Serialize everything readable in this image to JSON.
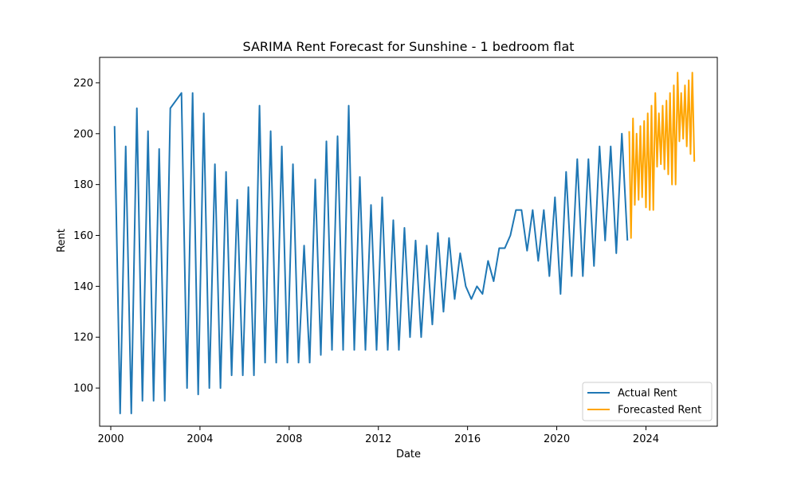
{
  "chart_data": {
    "type": "line",
    "title": "SARIMA Rent Forecast for Sunshine - 1 bedroom flat",
    "xlabel": "Date",
    "ylabel": "Rent",
    "xlim": [
      1999.5,
      2027.2
    ],
    "ylim": [
      85,
      230
    ],
    "x_ticks": [
      2000,
      2004,
      2008,
      2012,
      2016,
      2020,
      2024
    ],
    "y_ticks": [
      100,
      120,
      140,
      160,
      180,
      200,
      220
    ],
    "grid": false,
    "legend_position": "bottom-right",
    "series": [
      {
        "name": "Actual Rent",
        "color": "#1f77b4",
        "points": [
          [
            2000.17,
            203
          ],
          [
            2000.42,
            90
          ],
          [
            2000.67,
            195
          ],
          [
            2000.92,
            90
          ],
          [
            2001.17,
            210
          ],
          [
            2001.42,
            95
          ],
          [
            2001.67,
            201
          ],
          [
            2001.92,
            95
          ],
          [
            2002.17,
            194
          ],
          [
            2002.42,
            95
          ],
          [
            2002.67,
            210
          ],
          [
            2003.17,
            216
          ],
          [
            2003.42,
            100
          ],
          [
            2003.67,
            216
          ],
          [
            2003.92,
            97.5
          ],
          [
            2004.17,
            208
          ],
          [
            2004.42,
            100
          ],
          [
            2004.67,
            188
          ],
          [
            2004.92,
            100
          ],
          [
            2005.17,
            185
          ],
          [
            2005.42,
            105
          ],
          [
            2005.67,
            174
          ],
          [
            2005.92,
            105
          ],
          [
            2006.17,
            179
          ],
          [
            2006.42,
            105
          ],
          [
            2006.67,
            211
          ],
          [
            2006.92,
            110
          ],
          [
            2007.17,
            201
          ],
          [
            2007.42,
            110
          ],
          [
            2007.67,
            195
          ],
          [
            2007.92,
            110
          ],
          [
            2008.17,
            188
          ],
          [
            2008.42,
            110
          ],
          [
            2008.67,
            156
          ],
          [
            2008.92,
            110
          ],
          [
            2009.17,
            182
          ],
          [
            2009.42,
            113
          ],
          [
            2009.67,
            197
          ],
          [
            2009.92,
            115
          ],
          [
            2010.17,
            199
          ],
          [
            2010.42,
            115
          ],
          [
            2010.67,
            211
          ],
          [
            2010.92,
            115
          ],
          [
            2011.17,
            183
          ],
          [
            2011.42,
            115
          ],
          [
            2011.67,
            172
          ],
          [
            2011.92,
            115
          ],
          [
            2012.17,
            175
          ],
          [
            2012.42,
            115
          ],
          [
            2012.67,
            166
          ],
          [
            2012.92,
            115
          ],
          [
            2013.17,
            163
          ],
          [
            2013.42,
            120
          ],
          [
            2013.67,
            158
          ],
          [
            2013.92,
            120
          ],
          [
            2014.17,
            156
          ],
          [
            2014.42,
            125
          ],
          [
            2014.67,
            161
          ],
          [
            2014.92,
            130
          ],
          [
            2015.17,
            159
          ],
          [
            2015.42,
            135
          ],
          [
            2015.67,
            153
          ],
          [
            2015.92,
            140
          ],
          [
            2016.17,
            135
          ],
          [
            2016.42,
            140
          ],
          [
            2016.67,
            137
          ],
          [
            2016.92,
            150
          ],
          [
            2017.17,
            142
          ],
          [
            2017.42,
            155
          ],
          [
            2017.67,
            155
          ],
          [
            2017.92,
            160
          ],
          [
            2018.17,
            170
          ],
          [
            2018.42,
            170
          ],
          [
            2018.67,
            154
          ],
          [
            2018.92,
            170
          ],
          [
            2019.17,
            150
          ],
          [
            2019.42,
            170
          ],
          [
            2019.67,
            144
          ],
          [
            2019.92,
            175
          ],
          [
            2020.17,
            137
          ],
          [
            2020.42,
            185
          ],
          [
            2020.67,
            144
          ],
          [
            2020.92,
            190
          ],
          [
            2021.17,
            144
          ],
          [
            2021.42,
            190
          ],
          [
            2021.67,
            148
          ],
          [
            2021.92,
            195
          ],
          [
            2022.17,
            158
          ],
          [
            2022.42,
            195
          ],
          [
            2022.67,
            153
          ],
          [
            2022.92,
            200
          ],
          [
            2023.17,
            158
          ]
        ]
      },
      {
        "name": "Forecasted Rent",
        "color": "#ffa500",
        "points": [
          [
            2023.25,
            201
          ],
          [
            2023.33,
            159
          ],
          [
            2023.42,
            206
          ],
          [
            2023.5,
            172
          ],
          [
            2023.58,
            200
          ],
          [
            2023.67,
            174
          ],
          [
            2023.75,
            203
          ],
          [
            2023.83,
            175
          ],
          [
            2023.92,
            205
          ],
          [
            2024.0,
            171
          ],
          [
            2024.08,
            208
          ],
          [
            2024.17,
            170
          ],
          [
            2024.25,
            211
          ],
          [
            2024.33,
            170
          ],
          [
            2024.42,
            216
          ],
          [
            2024.5,
            187
          ],
          [
            2024.58,
            208
          ],
          [
            2024.67,
            188
          ],
          [
            2024.75,
            211
          ],
          [
            2024.83,
            186
          ],
          [
            2024.92,
            213
          ],
          [
            2025.0,
            184
          ],
          [
            2025.08,
            216
          ],
          [
            2025.17,
            180
          ],
          [
            2025.25,
            219
          ],
          [
            2025.33,
            180
          ],
          [
            2025.42,
            224
          ],
          [
            2025.5,
            197
          ],
          [
            2025.58,
            216
          ],
          [
            2025.67,
            198
          ],
          [
            2025.75,
            219
          ],
          [
            2025.83,
            195
          ],
          [
            2025.92,
            221
          ],
          [
            2026.0,
            192
          ],
          [
            2026.08,
            224
          ],
          [
            2026.17,
            189
          ]
        ]
      }
    ]
  }
}
